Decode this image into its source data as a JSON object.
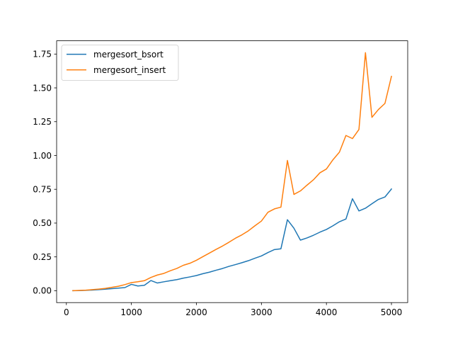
{
  "chart_data": {
    "type": "line",
    "title": "",
    "xlabel": "",
    "ylabel": "",
    "xlim": [
      -150,
      5250
    ],
    "ylim": [
      -0.088,
      1.848
    ],
    "xticks": [
      0,
      1000,
      2000,
      3000,
      4000,
      5000
    ],
    "xtick_labels": [
      "0",
      "1000",
      "2000",
      "3000",
      "4000",
      "5000"
    ],
    "yticks": [
      0.0,
      0.25,
      0.5,
      0.75,
      1.0,
      1.25,
      1.5,
      1.75
    ],
    "ytick_labels": [
      "0.00",
      "0.25",
      "0.50",
      "0.75",
      "1.00",
      "1.25",
      "1.50",
      "1.75"
    ],
    "grid": false,
    "legend": {
      "placement": "top-left"
    },
    "x": [
      100,
      200,
      300,
      400,
      500,
      600,
      700,
      800,
      900,
      1000,
      1100,
      1200,
      1300,
      1400,
      1500,
      1600,
      1700,
      1800,
      1900,
      2000,
      2100,
      2200,
      2300,
      2400,
      2500,
      2600,
      2700,
      2800,
      2900,
      3000,
      3100,
      3200,
      3300,
      3400,
      3500,
      3600,
      3700,
      3800,
      3900,
      4000,
      4100,
      4200,
      4300,
      4400,
      4500,
      4600,
      4700,
      4800,
      4900,
      5000
    ],
    "series": [
      {
        "name": "mergesort_bsort",
        "color": "#1f77b4",
        "values": [
          0.0,
          0.001,
          0.003,
          0.005,
          0.008,
          0.011,
          0.015,
          0.019,
          0.023,
          0.047,
          0.035,
          0.04,
          0.075,
          0.057,
          0.066,
          0.074,
          0.082,
          0.093,
          0.102,
          0.112,
          0.126,
          0.137,
          0.151,
          0.164,
          0.18,
          0.193,
          0.207,
          0.222,
          0.24,
          0.257,
          0.282,
          0.304,
          0.31,
          0.525,
          0.462,
          0.374,
          0.39,
          0.41,
          0.433,
          0.453,
          0.48,
          0.51,
          0.53,
          0.68,
          0.59,
          0.61,
          0.643,
          0.675,
          0.693,
          0.752
        ]
      },
      {
        "name": "mergesort_insert",
        "color": "#ff7f0e",
        "values": [
          0.0,
          0.002,
          0.004,
          0.008,
          0.012,
          0.017,
          0.025,
          0.033,
          0.045,
          0.06,
          0.066,
          0.074,
          0.098,
          0.116,
          0.128,
          0.148,
          0.165,
          0.188,
          0.203,
          0.225,
          0.252,
          0.278,
          0.305,
          0.33,
          0.358,
          0.388,
          0.413,
          0.443,
          0.48,
          0.515,
          0.58,
          0.605,
          0.618,
          0.963,
          0.712,
          0.738,
          0.78,
          0.82,
          0.872,
          0.9,
          0.968,
          1.025,
          1.148,
          1.125,
          1.192,
          1.76,
          1.282,
          1.34,
          1.385,
          1.585
        ]
      }
    ]
  }
}
